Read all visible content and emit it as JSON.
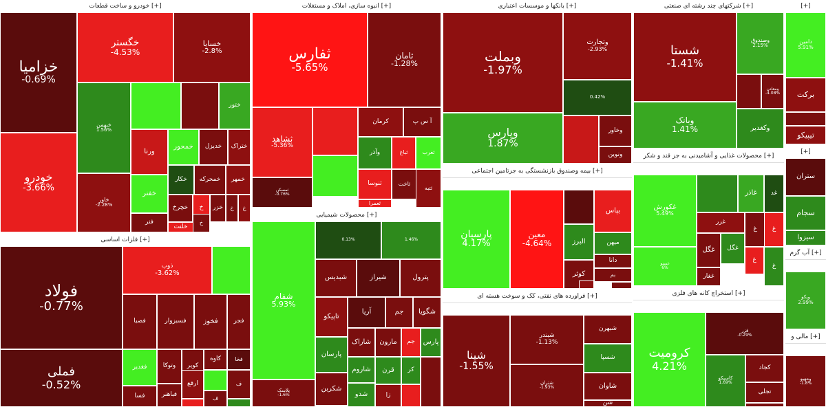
{
  "palette": {
    "dr1": "#4a0a0a",
    "dr2": "#5a0c0c",
    "dr3": "#7a0e0e",
    "dr4": "#8e1010",
    "dr5": "#a51414",
    "rd": "#c81818",
    "br": "#e81e1e",
    "vr": "#ff1414",
    "dg1": "#1f4d12",
    "dg2": "#286a18",
    "g1": "#2e8a1c",
    "g2": "#39a822",
    "bg": "#3cd01e",
    "vg": "#44ee22"
  },
  "sectors": [
    {
      "title": "خودرو و ساخت قطعات [+]",
      "tiles": [
        {
          "sym": "خزامیا",
          "chg": "-0.69%",
          "c": "dr2"
        },
        {
          "sym": "خودرو",
          "chg": "-3.66%",
          "c": "br"
        },
        {
          "sym": "خگستر",
          "chg": "-4.53%",
          "c": "br"
        },
        {
          "sym": "خسایا",
          "chg": "-2.8%",
          "c": "dr4"
        },
        {
          "sym": "خبهمن",
          "chg": "1.56%",
          "c": "g1"
        },
        {
          "sym": "",
          "chg": "",
          "c": "vg"
        },
        {
          "sym": "",
          "chg": "",
          "c": "dr3"
        },
        {
          "sym": "ختور",
          "chg": "",
          "c": "g2"
        },
        {
          "sym": "خاور",
          "chg": "-2.28%",
          "c": "dr4"
        },
        {
          "sym": "ورنا",
          "chg": "",
          "c": "rd"
        },
        {
          "sym": "خمحور",
          "chg": "",
          "c": "vg"
        },
        {
          "sym": "خدیزل",
          "chg": "",
          "c": "dr3"
        },
        {
          "sym": "ختراک",
          "chg": "",
          "c": "dr4"
        },
        {
          "sym": "خکار",
          "chg": "",
          "c": "dg1"
        },
        {
          "sym": "خمحرکه",
          "chg": "",
          "c": "dr3"
        },
        {
          "sym": "خمهر",
          "chg": "",
          "c": "dr4"
        },
        {
          "sym": "خفنر",
          "chg": "",
          "c": "vg"
        },
        {
          "sym": "فنر",
          "chg": "",
          "c": "dr3"
        },
        {
          "sym": "خلنت",
          "chg": "",
          "c": "br"
        },
        {
          "sym": "خچرخ",
          "chg": "",
          "c": "dr3"
        },
        {
          "sym": "خزر",
          "chg": "",
          "c": "dr3"
        },
        {
          "sym": "خ",
          "chg": "",
          "c": "br"
        },
        {
          "sym": "خ",
          "chg": "",
          "c": "dr3"
        },
        {
          "sym": "خ",
          "chg": "",
          "c": "dr3"
        },
        {
          "sym": "خ",
          "chg": "",
          "c": "dr4"
        }
      ]
    },
    {
      "title": "انبوه سازی، املاک و مستغلات [+]",
      "tiles": [
        {
          "sym": "ثفارس",
          "chg": "-5.65%",
          "c": "vr"
        },
        {
          "sym": "ثامان",
          "chg": "-1.28%",
          "c": "dr3"
        },
        {
          "sym": "ثشاهد",
          "chg": "-5.36%",
          "c": "br"
        },
        {
          "sym": "",
          "chg": "",
          "c": "br"
        },
        {
          "sym": "کرمان",
          "chg": "",
          "c": "dr4"
        },
        {
          "sym": "آ س پ",
          "chg": "",
          "c": "dr3"
        },
        {
          "sym": "",
          "chg": "",
          "c": "vg"
        },
        {
          "sym": "وآذر",
          "chg": "",
          "c": "g1"
        },
        {
          "sym": "ثباغ",
          "chg": "",
          "c": "br"
        },
        {
          "sym": "ثغرب",
          "chg": "",
          "c": "vg"
        },
        {
          "sym": "ثنوسا",
          "chg": "",
          "c": "br"
        },
        {
          "sym": "ثاخت",
          "chg": "",
          "c": "dr3"
        },
        {
          "sym": "ثمسکن",
          "chg": "-0.76%",
          "c": "dr2"
        },
        {
          "sym": "ثعمرا",
          "chg": "",
          "c": "br"
        },
        {
          "sym": "ثتبه",
          "chg": "",
          "c": "dr4"
        }
      ]
    },
    {
      "title": "بانکها و موسسات اعتباری [+]",
      "tiles": [
        {
          "sym": "وبملت",
          "chg": "-1.97%",
          "c": "dr4"
        },
        {
          "sym": "وتجارت",
          "chg": "-2.93%",
          "c": "dr4"
        },
        {
          "sym": "",
          "chg": "0.42%",
          "c": "dg1"
        },
        {
          "sym": "وپارس",
          "chg": "1.87%",
          "c": "g2"
        },
        {
          "sym": "",
          "chg": "",
          "c": "rd"
        },
        {
          "sym": "وخاور",
          "chg": "",
          "c": "dr3"
        },
        {
          "sym": "ونوین",
          "chg": "",
          "c": "dr3"
        }
      ]
    },
    {
      "title": "شرکتهای چند رشته ای صنعتی [+]",
      "tiles": [
        {
          "sym": "شستا",
          "chg": "-1.41%",
          "c": "dr4"
        },
        {
          "sym": "وصندوق",
          "chg": "2.15%",
          "c": "g2"
        },
        {
          "sym": "",
          "chg": "",
          "c": "dr3"
        },
        {
          "sym": "ومعادن",
          "chg": "-4.08%",
          "c": "dr3"
        },
        {
          "sym": "وبانک",
          "chg": "1.41%",
          "c": "g2"
        },
        {
          "sym": "وکغدیر",
          "chg": "",
          "c": "g1"
        }
      ]
    },
    {
      "title": "[+]",
      "tiles": [
        {
          "sym": "دامین",
          "chg": "5.91%",
          "c": "vg"
        },
        {
          "sym": "برکت",
          "chg": "",
          "c": "dr4"
        },
        {
          "sym": "",
          "chg": "",
          "c": "dr3"
        },
        {
          "sym": "تیپیکو",
          "chg": "",
          "c": "dr4"
        },
        {
          "sym": "",
          "chg": "",
          "c": "g1"
        }
      ]
    },
    {
      "title": "فلزات اساسی [+]",
      "tiles": [
        {
          "sym": "فولاد",
          "chg": "-0.77%",
          "c": "dr2"
        },
        {
          "sym": "فملی",
          "chg": "-0.52%",
          "c": "dr2"
        },
        {
          "sym": "ذوب",
          "chg": "-3.62%",
          "c": "br"
        },
        {
          "sym": "",
          "chg": "",
          "c": "vg"
        },
        {
          "sym": "فصبا",
          "chg": "",
          "c": "dr3"
        },
        {
          "sym": "فسبزوار",
          "chg": "",
          "c": "dr3"
        },
        {
          "sym": "فخوز",
          "chg": "",
          "c": "dr3"
        },
        {
          "sym": "فجر",
          "chg": "",
          "c": "dr3"
        },
        {
          "sym": "فغدیر",
          "chg": "",
          "c": "vg"
        },
        {
          "sym": "وتوکا",
          "chg": "",
          "c": "dr3"
        },
        {
          "sym": "کویر",
          "chg": "",
          "c": "dr3"
        },
        {
          "sym": "کاوه",
          "chg": "",
          "c": "dr3"
        },
        {
          "sym": "فخا",
          "chg": "",
          "c": "dr2"
        },
        {
          "sym": "فسا",
          "chg": "",
          "c": "dr3"
        },
        {
          "sym": "فباهنر",
          "chg": "",
          "c": "dr3"
        },
        {
          "sym": "ارفع",
          "chg": "",
          "c": "dr4"
        },
        {
          "sym": "",
          "chg": "",
          "c": "br"
        },
        {
          "sym": "",
          "chg": "",
          "c": "vg"
        },
        {
          "sym": "ف",
          "chg": "",
          "c": "dr3"
        },
        {
          "sym": "ف",
          "chg": "",
          "c": "dr3"
        },
        {
          "sym": "",
          "chg": "",
          "c": "g1"
        }
      ]
    },
    {
      "title": "محصولات شیمیایی [+]",
      "tiles": [
        {
          "sym": "شفام",
          "chg": "5.93%",
          "c": "vg"
        },
        {
          "sym": "",
          "chg": "0.13%",
          "c": "dg1"
        },
        {
          "sym": "",
          "chg": "1.46%",
          "c": "g1"
        },
        {
          "sym": "شبدیس",
          "chg": "",
          "c": "dr3"
        },
        {
          "sym": "شیراز",
          "chg": "",
          "c": "dr2"
        },
        {
          "sym": "پترول",
          "chg": "",
          "c": "dr3"
        },
        {
          "sym": "پلاسک",
          "chg": "-1.6%",
          "c": "dr3"
        },
        {
          "sym": "تاپیکو",
          "chg": "",
          "c": "dr4"
        },
        {
          "sym": "آریا",
          "chg": "",
          "c": "dr2"
        },
        {
          "sym": "جم",
          "chg": "",
          "c": "dr3"
        },
        {
          "sym": "شگویا",
          "chg": "",
          "c": "dr3"
        },
        {
          "sym": "پارسان",
          "chg": "",
          "c": "g1"
        },
        {
          "sym": "شاراک",
          "chg": "",
          "c": "dr3"
        },
        {
          "sym": "مارون",
          "chg": "",
          "c": "dr3"
        },
        {
          "sym": "جم",
          "chg": "",
          "c": "br"
        },
        {
          "sym": "پارس",
          "chg": "",
          "c": "g1"
        },
        {
          "sym": "شاروم",
          "chg": "",
          "c": "g1"
        },
        {
          "sym": "قرن",
          "chg": "",
          "c": "g1"
        },
        {
          "sym": "کر",
          "chg": "",
          "c": "g1"
        },
        {
          "sym": "شکربن",
          "chg": "",
          "c": "dr3"
        },
        {
          "sym": "شدو",
          "chg": "",
          "c": "g1"
        },
        {
          "sym": "زا",
          "chg": "",
          "c": "dr4"
        },
        {
          "sym": "",
          "chg": "4.71%",
          "c": "vg"
        },
        {
          "sym": "شلعاب",
          "chg": "",
          "c": "g1"
        },
        {
          "sym": "شغن",
          "chg": "",
          "c": "dr3"
        },
        {
          "sym": "",
          "chg": "",
          "c": "br"
        },
        {
          "sym": "",
          "chg": "",
          "c": "dr3"
        },
        {
          "sym": "",
          "chg": "",
          "c": "g1"
        }
      ]
    },
    {
      "title": "بیمه وصندوق بازنشستگی به جزتامین اجتماعی [+]",
      "tiles": [
        {
          "sym": "پارسیان",
          "chg": "4.17%",
          "c": "vg"
        },
        {
          "sym": "معین",
          "chg": "-4.64%",
          "c": "vr"
        },
        {
          "sym": "",
          "chg": "",
          "c": "dr2"
        },
        {
          "sym": "بپاس",
          "chg": "",
          "c": "br"
        },
        {
          "sym": "البرز",
          "chg": "",
          "c": "g1"
        },
        {
          "sym": "میهن",
          "chg": "",
          "c": "g1"
        },
        {
          "sym": "دانا",
          "chg": "",
          "c": "dr3"
        },
        {
          "sym": "بم",
          "chg": "",
          "c": "dr3"
        },
        {
          "sym": "کوثر",
          "chg": "",
          "c": "dr3"
        },
        {
          "sym": "",
          "chg": "",
          "c": "dr3"
        },
        {
          "sym": "",
          "chg": "",
          "c": "dr4"
        },
        {
          "sym": "",
          "chg": "",
          "c": "dr3"
        }
      ]
    },
    {
      "title": "محصولات غذایی و آشامیدنی به جز قند و شکر [+]",
      "tiles": [
        {
          "sym": "غکورش",
          "chg": "5.49%",
          "c": "vg"
        },
        {
          "sym": "",
          "chg": "",
          "c": "g1"
        },
        {
          "sym": "غاذر",
          "chg": "",
          "c": "g2"
        },
        {
          "sym": "غد",
          "chg": "",
          "c": "dg1"
        },
        {
          "sym": "غمینو",
          "chg": "6%",
          "c": "vg"
        },
        {
          "sym": "غزر",
          "chg": "",
          "c": "dr4"
        },
        {
          "sym": "غگل",
          "chg": "",
          "c": "dr3"
        },
        {
          "sym": "آردینه",
          "chg": "",
          "c": "br"
        },
        {
          "sym": "غگل",
          "chg": "",
          "c": "g1"
        },
        {
          "sym": "غغار",
          "chg": "",
          "c": "dr3"
        },
        {
          "sym": "غ",
          "chg": "",
          "c": "dr3"
        },
        {
          "sym": "غ",
          "chg": "",
          "c": "br"
        },
        {
          "sym": "غ",
          "chg": "",
          "c": "br"
        },
        {
          "sym": "غ",
          "chg": "",
          "c": "g1"
        }
      ]
    },
    {
      "title": "[+]",
      "tiles": [
        {
          "sym": "ستران",
          "chg": "",
          "c": "dr2"
        },
        {
          "sym": "سجام",
          "chg": "",
          "c": "g1"
        },
        {
          "sym": "سیزوا",
          "chg": "",
          "c": "g1"
        },
        {
          "sym": "س",
          "chg": "",
          "c": "g1"
        }
      ]
    },
    {
      "title": "فراورده های نفتی، کک و سوخت هسته ای [+]",
      "tiles": [
        {
          "sym": "شپنا",
          "chg": "-1.55%",
          "c": "dr3"
        },
        {
          "sym": "شبندر",
          "chg": "-1.13%",
          "c": "dr3"
        },
        {
          "sym": "شبهرن",
          "chg": "",
          "c": "dr3"
        },
        {
          "sym": "شسپا",
          "chg": "",
          "c": "g1"
        },
        {
          "sym": "شاوان",
          "chg": "",
          "c": "dr3"
        },
        {
          "sym": "شتران",
          "chg": "-1.93%",
          "c": "dr3"
        },
        {
          "sym": "شبریز",
          "chg": "",
          "c": "dr3"
        },
        {
          "sym": "شن",
          "chg": "",
          "c": "dr3"
        }
      ]
    },
    {
      "title": "استخراج کانه های فلزی [+]",
      "tiles": [
        {
          "sym": "کرومیت",
          "chg": "4.21%",
          "c": "vg"
        },
        {
          "sym": "فزر",
          "chg": "-0.29%",
          "c": "dr2"
        },
        {
          "sym": "کاسیکو",
          "chg": "1.69%",
          "c": "g1"
        },
        {
          "sym": "کگهر",
          "chg": "",
          "c": "dr3"
        },
        {
          "sym": "کجاد",
          "chg": "",
          "c": "dr3"
        },
        {
          "sym": "تجلی",
          "chg": "",
          "c": "dr3"
        },
        {
          "sym": "",
          "chg": "",
          "c": "dr3"
        },
        {
          "sym": "",
          "chg": "",
          "c": "g1"
        },
        {
          "sym": "",
          "chg": "",
          "c": "dr2"
        }
      ]
    },
    {
      "title": "آب گرم [+]",
      "tiles": [
        {
          "sym": "ویکو",
          "chg": "2.99%",
          "c": "g2"
        }
      ]
    },
    {
      "title": "مالی و [+]",
      "tiles": [
        {
          "sym": "ومهیو",
          "chg": "-1.8%",
          "c": "dr3"
        }
      ]
    }
  ]
}
